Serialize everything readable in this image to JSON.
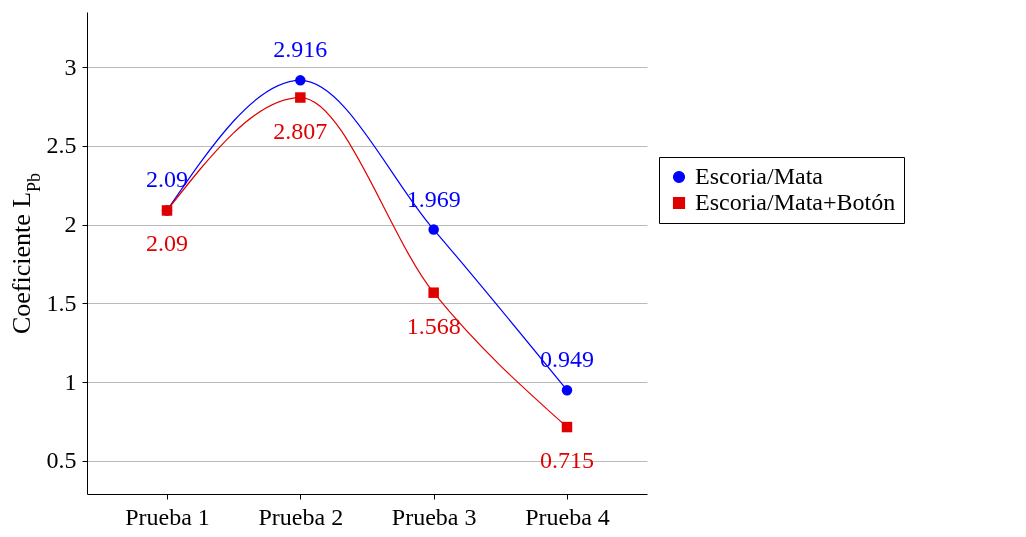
{
  "chart_data": {
    "type": "line",
    "ylabel": "Coeficiente L$_{Pb}$",
    "categories": [
      "Prueba 1",
      "Prueba 2",
      "Prueba 3",
      "Prueba 4"
    ],
    "series": [
      {
        "name": "Escoria/Mata",
        "color": "#0000ff",
        "marker": "circle",
        "values": [
          2.09,
          2.916,
          1.969,
          0.949
        ]
      },
      {
        "name": "Escoria/Mata+Botón",
        "color": "#e00000",
        "marker": "square",
        "values": [
          2.09,
          2.807,
          1.568,
          0.715
        ]
      }
    ],
    "ylim": [
      0.29,
      3.35
    ],
    "yticks": [
      0.5,
      1,
      1.5,
      2,
      2.5,
      3
    ],
    "grid": "y",
    "legend": "right",
    "data_labels": true
  }
}
